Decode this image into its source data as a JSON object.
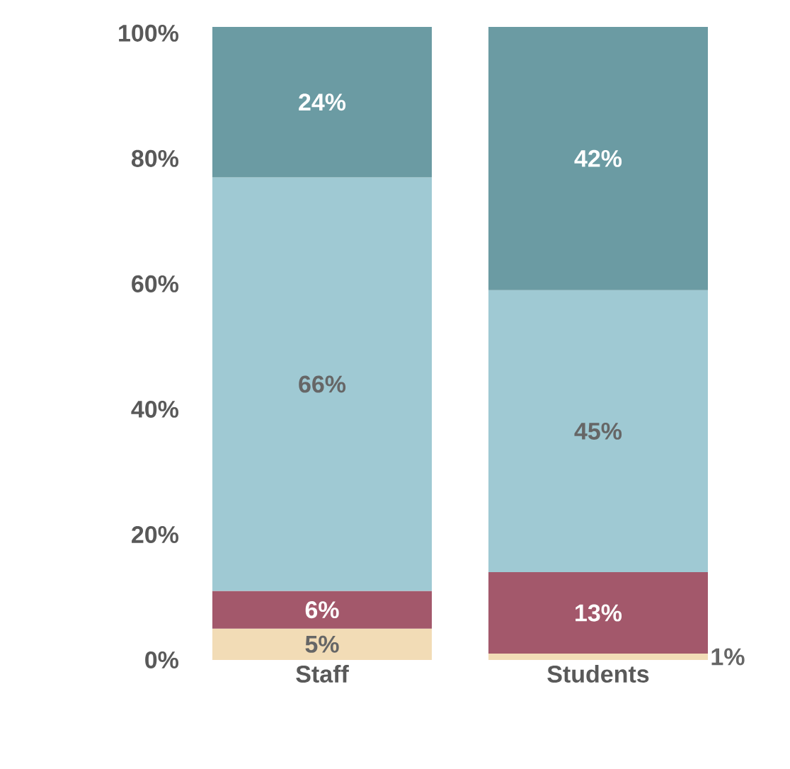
{
  "chart_data": {
    "type": "bar",
    "stacked": true,
    "categories": [
      "Staff",
      "Students"
    ],
    "series": [
      {
        "color": "#f2dcb6",
        "values": [
          5,
          1
        ],
        "value_labels": [
          "5%",
          "1%"
        ]
      },
      {
        "color": "#a3586b",
        "values": [
          6,
          13
        ],
        "value_labels": [
          "6%",
          "13%"
        ]
      },
      {
        "color": "#9fc9d3",
        "values": [
          66,
          45
        ],
        "value_labels": [
          "66%",
          "45%"
        ]
      },
      {
        "color": "#6b9ba3",
        "values": [
          24,
          42
        ],
        "value_labels": [
          "24%",
          "42%"
        ]
      }
    ],
    "ylim": [
      0,
      101
    ],
    "yticks": [
      {
        "value": 0,
        "label": "0%"
      },
      {
        "value": 20,
        "label": "20%"
      },
      {
        "value": 40,
        "label": "40%"
      },
      {
        "value": 60,
        "label": "60%"
      },
      {
        "value": 80,
        "label": "80%"
      },
      {
        "value": 100,
        "label": "100%"
      }
    ],
    "grid": false
  }
}
